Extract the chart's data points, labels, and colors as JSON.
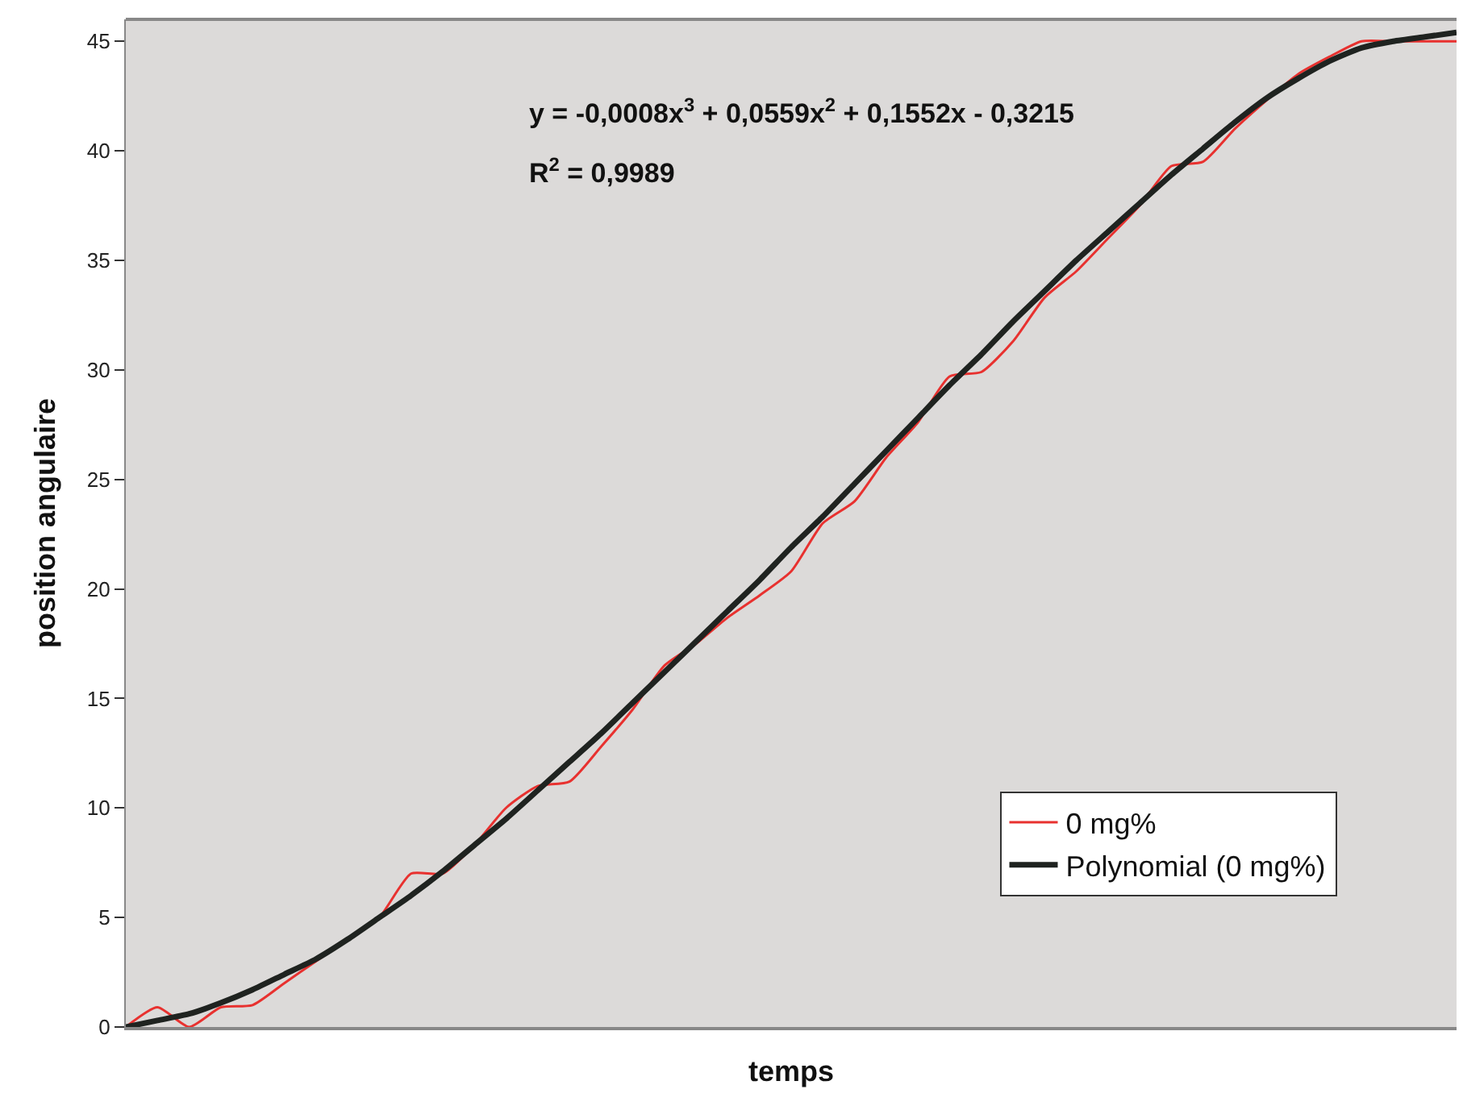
{
  "chart_data": {
    "type": "line",
    "xlabel": "temps",
    "ylabel": "position angulaire",
    "categories": [
      null,
      null,
      null,
      null,
      null,
      null,
      null,
      null,
      null,
      null,
      null,
      null,
      null,
      null,
      null,
      null,
      null,
      null,
      null,
      null,
      null,
      null,
      null,
      null,
      null,
      null,
      null,
      null,
      null,
      null,
      null,
      null,
      null,
      null,
      null,
      null,
      null,
      null,
      null,
      null,
      null,
      null,
      null
    ],
    "series": [
      {
        "name": "0 mg%",
        "color": "#e8312f",
        "values": [
          0,
          0.9,
          0,
          0.9,
          1.0,
          2.0,
          3.0,
          4.0,
          5.0,
          7.0,
          7.0,
          8.3,
          10.0,
          11.0,
          11.2,
          12.8,
          14.5,
          16.5,
          17.5,
          18.7,
          19.7,
          20.8,
          23.0,
          24.0,
          26.0,
          27.6,
          29.7,
          29.9,
          31.3,
          33.3,
          34.5,
          36.0,
          37.5,
          39.3,
          39.5,
          41.0,
          42.3,
          43.5,
          44.3,
          45.0,
          45.0,
          45.0,
          45.0
        ]
      },
      {
        "name": "Polynomial (0 mg%)",
        "color": "#1f2320",
        "values": [
          0,
          0.3,
          0.6,
          1.1,
          1.7,
          2.4,
          3.1,
          4.0,
          5.0,
          6.0,
          7.1,
          8.3,
          9.5,
          10.8,
          12.1,
          13.4,
          14.8,
          16.2,
          17.6,
          19.0,
          20.4,
          21.9,
          23.3,
          24.8,
          26.3,
          27.8,
          29.3,
          30.7,
          32.2,
          33.6,
          35.0,
          36.3,
          37.6,
          38.9,
          40.1,
          41.3,
          42.4,
          43.3,
          44.1,
          44.7,
          45.0,
          45.2,
          45.4
        ]
      }
    ],
    "annotations": [
      "y = -0,0008x$^{3}$ + 0,0559x$^{2}$ + 0,1552x - 0,3215",
      "R$^{2}$ = 0,9989"
    ],
    "ylim": [
      0,
      46
    ],
    "yticks": [
      0,
      5,
      10,
      15,
      20,
      25,
      30,
      35,
      40,
      45
    ],
    "tick_labels": "y",
    "grid": false,
    "legend": "bottom right",
    "marker": "none",
    "line_style": "solid"
  }
}
